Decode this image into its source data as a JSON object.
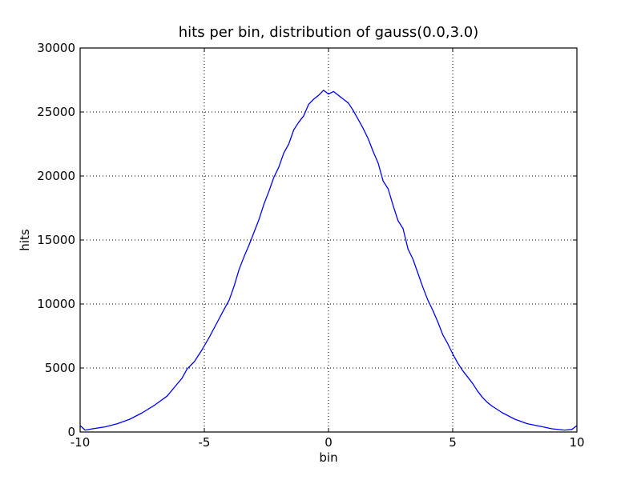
{
  "chart_data": {
    "type": "line",
    "title": "hits per bin, distribution of gauss(0.0,3.0)",
    "xlabel": "bin",
    "ylabel": "hits",
    "xlim": [
      -10,
      10
    ],
    "ylim": [
      0,
      30000
    ],
    "xticks": [
      -10,
      -5,
      0,
      5,
      10
    ],
    "xtick_labels": [
      "-10",
      "-5",
      "0",
      "5",
      "10"
    ],
    "yticks": [
      0,
      5000,
      10000,
      15000,
      20000,
      25000,
      30000
    ],
    "ytick_labels": [
      "0",
      "5000",
      "10000",
      "15000",
      "20000",
      "25000",
      "30000"
    ],
    "grid": true,
    "series": [
      {
        "color": "#0000ff",
        "x": [
          -10.0,
          -9.8,
          -9.5,
          -9.0,
          -8.5,
          -8.0,
          -7.5,
          -7.0,
          -6.5,
          -6.2,
          -5.9,
          -5.7,
          -5.4,
          -5.1,
          -4.8,
          -4.5,
          -4.2,
          -4.0,
          -3.8,
          -3.6,
          -3.4,
          -3.2,
          -3.0,
          -2.8,
          -2.6,
          -2.4,
          -2.2,
          -2.0,
          -1.8,
          -1.6,
          -1.4,
          -1.2,
          -1.0,
          -0.8,
          -0.6,
          -0.4,
          -0.2,
          0.0,
          0.2,
          0.4,
          0.6,
          0.8,
          1.0,
          1.2,
          1.4,
          1.6,
          1.8,
          2.0,
          2.2,
          2.4,
          2.6,
          2.8,
          3.0,
          3.2,
          3.4,
          3.6,
          3.8,
          4.0,
          4.2,
          4.4,
          4.6,
          4.8,
          5.0,
          5.2,
          5.4,
          5.6,
          5.8,
          6.0,
          6.2,
          6.4,
          6.6,
          7.0,
          7.5,
          8.0,
          8.5,
          9.0,
          9.5,
          9.8,
          10.0
        ],
        "y": [
          500,
          150,
          250,
          400,
          650,
          1000,
          1500,
          2100,
          2800,
          3500,
          4200,
          4900,
          5500,
          6400,
          7400,
          8500,
          9600,
          10300,
          11400,
          12700,
          13700,
          14600,
          15600,
          16600,
          17800,
          18800,
          19900,
          20700,
          21800,
          22500,
          23600,
          24200,
          24700,
          25600,
          26000,
          26300,
          26700,
          26400,
          26600,
          26300,
          26000,
          25700,
          25100,
          24400,
          23700,
          22900,
          21900,
          21000,
          19600,
          19000,
          17700,
          16500,
          15900,
          14300,
          13500,
          12400,
          11300,
          10300,
          9500,
          8600,
          7600,
          6900,
          6100,
          5400,
          4800,
          4300,
          3800,
          3200,
          2700,
          2300,
          2000,
          1500,
          1000,
          650,
          450,
          250,
          150,
          200,
          500
        ]
      }
    ]
  }
}
